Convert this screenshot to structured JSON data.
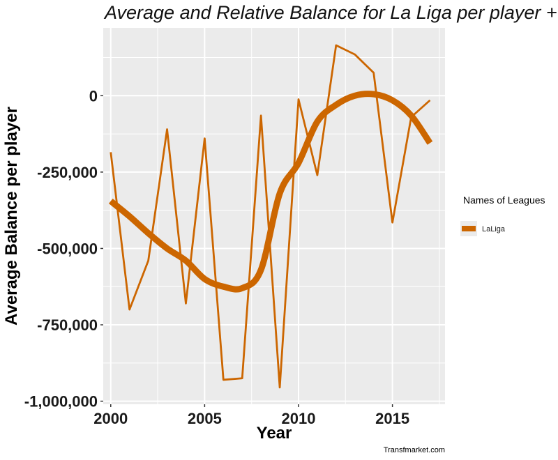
{
  "chart_data": {
    "type": "line",
    "title": "Average and Relative  Balance for La Liga  per player +",
    "xlabel": "Year",
    "ylabel": "Average Balance  per player",
    "x": [
      2000,
      2001,
      2002,
      2003,
      2004,
      2005,
      2006,
      2007,
      2008,
      2009,
      2010,
      2011,
      2012,
      2013,
      2014,
      2015,
      2016,
      2017
    ],
    "series": [
      {
        "name": "LaLiga",
        "kind": "raw",
        "values": [
          -185000,
          -700000,
          -540000,
          -110000,
          -680000,
          -140000,
          -930000,
          -925000,
          -65000,
          -955000,
          -12000,
          -260000,
          165000,
          135000,
          75000,
          -415000,
          -70000,
          -15000
        ]
      },
      {
        "name": "LaLiga",
        "kind": "smoothed",
        "values": [
          -345000,
          -395000,
          -450000,
          -500000,
          -540000,
          -600000,
          -625000,
          -630000,
          -570000,
          -320000,
          -220000,
          -85000,
          -30000,
          0,
          5000,
          -15000,
          -65000,
          -155000
        ]
      }
    ],
    "xlim": [
      1999.6,
      2017.8
    ],
    "ylim": [
      -1010000,
      222000
    ],
    "x_ticks": [
      2000,
      2005,
      2010,
      2015
    ],
    "x_tick_labels": [
      "2000",
      "2005",
      "2010",
      "2015"
    ],
    "y_ticks": [
      -1000000,
      -750000,
      -500000,
      -250000,
      0
    ],
    "y_tick_labels": [
      "-1,000,000",
      "-750,000",
      "-500,000",
      "-250,000",
      "0"
    ],
    "grid": true,
    "legend": {
      "title": "Names of Leagues",
      "entries": [
        "LaLiga"
      ],
      "placement": "right"
    },
    "caption": "Transfmarket.com",
    "colors": {
      "series": "#cc6600",
      "panel": "#ebebeb",
      "grid": "#ffffff"
    }
  }
}
